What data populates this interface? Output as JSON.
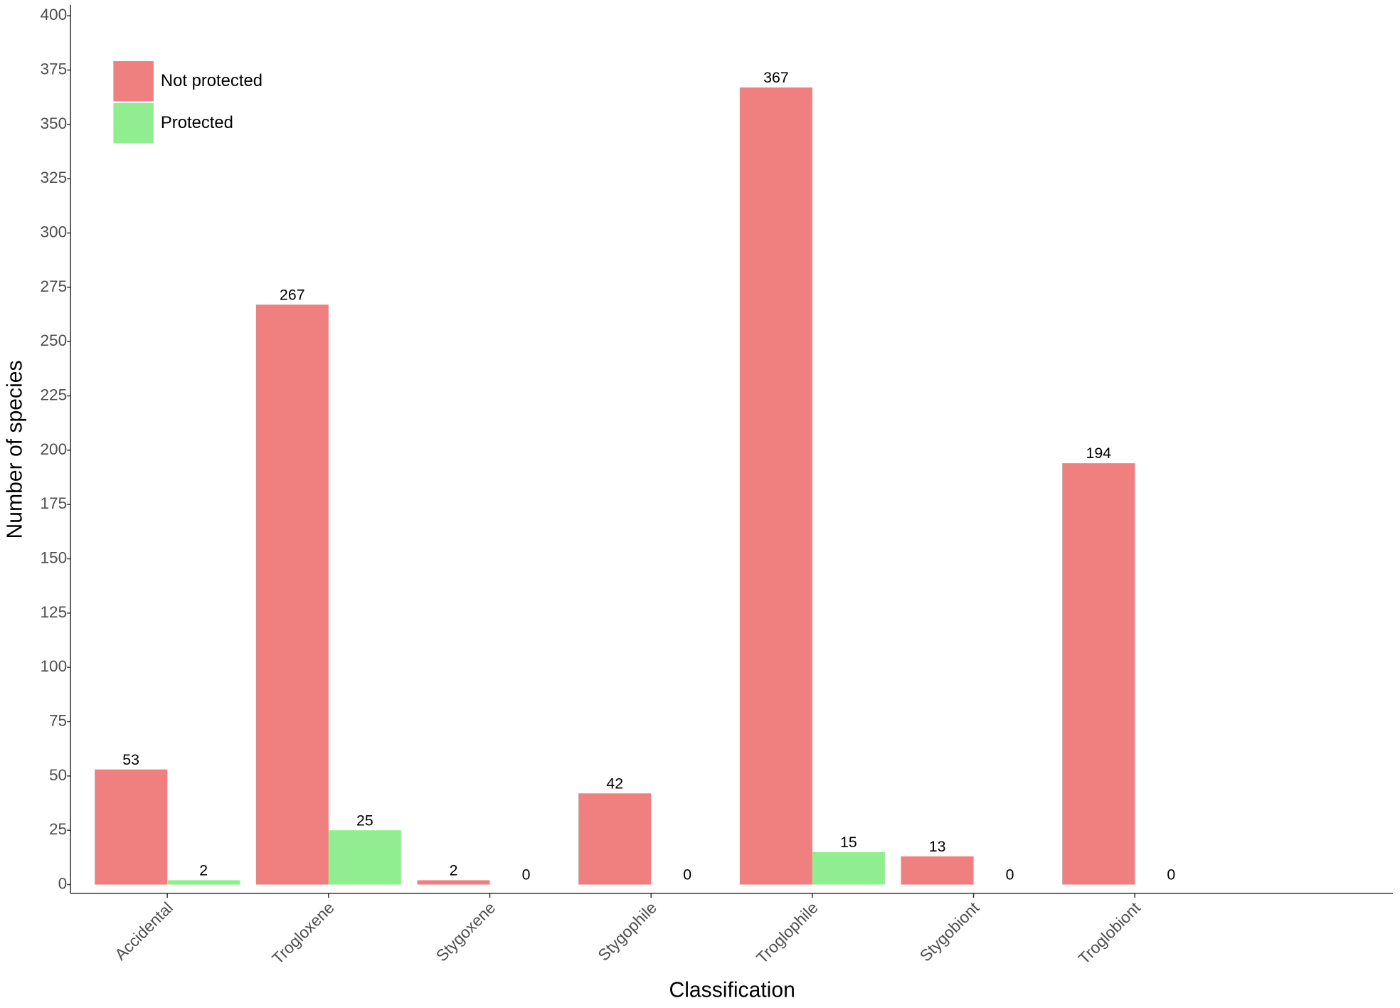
{
  "chart_data": {
    "type": "bar",
    "x_label": "Classification",
    "y_label": "Number of species",
    "categories": [
      "Accidental",
      "Trogloxene",
      "Stygoxene",
      "Stygophile",
      "Troglophile",
      "Stygobiont",
      "Troglobiont"
    ],
    "series": [
      {
        "name": "Not protected",
        "color": "#f08080",
        "values": [
          53,
          267,
          2,
          42,
          367,
          13,
          194
        ]
      },
      {
        "name": "Protected",
        "color": "#90ee90",
        "values": [
          2,
          25,
          0,
          0,
          15,
          0,
          0
        ]
      }
    ],
    "ylim": [
      -4,
      405
    ],
    "yticks": [
      0,
      25,
      50,
      75,
      100,
      125,
      150,
      175,
      200,
      225,
      250,
      275,
      300,
      325,
      350,
      375,
      400
    ],
    "legend_position": "top-left",
    "grid": false
  }
}
